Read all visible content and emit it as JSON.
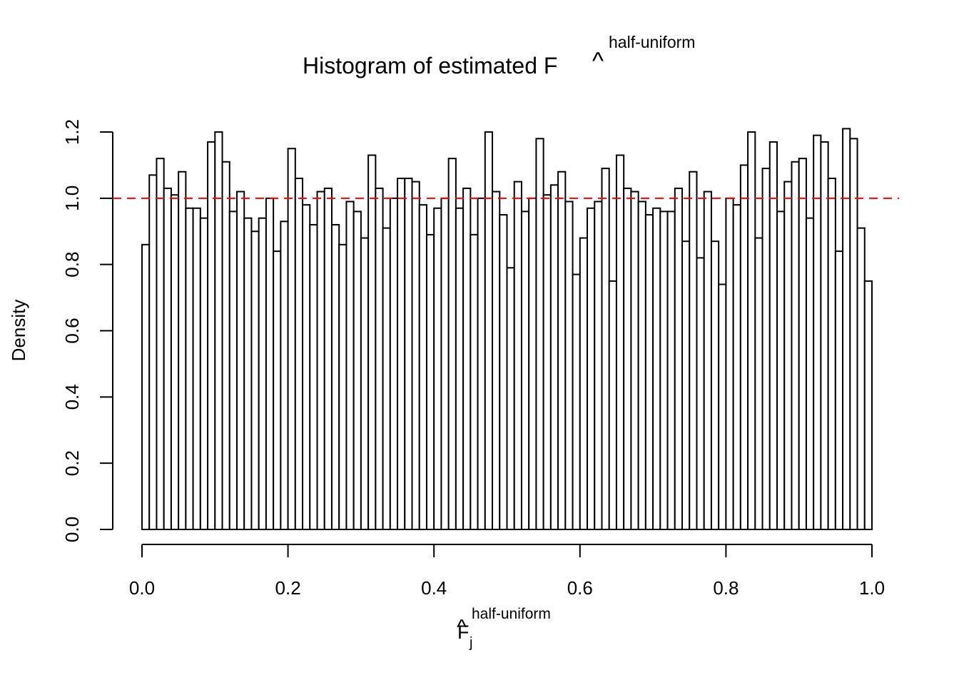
{
  "chart_data": {
    "type": "bar",
    "title": "Histogram of estimated F",
    "title_accent": "^",
    "title_superscript": "half-uniform",
    "xlabel": "F",
    "xlabel_accent": "^",
    "xlabel_subscript": "j",
    "xlabel_superscript": "half-uniform",
    "ylabel": "Density",
    "xlim": [
      0,
      1
    ],
    "ylim": [
      0,
      1.2
    ],
    "x_ticks": [
      "0.0",
      "0.2",
      "0.4",
      "0.6",
      "0.8",
      "1.0"
    ],
    "y_ticks": [
      "0.0",
      "0.2",
      "0.4",
      "0.6",
      "0.8",
      "1.0",
      "1.2"
    ],
    "bin_width": 0.01,
    "bin_start": 0,
    "values": [
      0.86,
      1.07,
      1.12,
      1.03,
      1.01,
      1.08,
      0.97,
      0.97,
      0.94,
      1.17,
      1.2,
      1.11,
      0.96,
      1.02,
      0.94,
      0.9,
      0.94,
      1.0,
      0.84,
      0.93,
      1.15,
      1.06,
      0.98,
      0.92,
      1.02,
      1.03,
      0.92,
      0.86,
      0.99,
      0.96,
      0.88,
      1.13,
      1.03,
      0.91,
      1.0,
      1.06,
      1.06,
      1.05,
      0.98,
      0.89,
      0.97,
      1.0,
      1.12,
      0.97,
      1.03,
      0.89,
      1.0,
      1.2,
      1.02,
      0.95,
      0.79,
      1.05,
      0.96,
      1.0,
      1.18,
      1.01,
      1.04,
      1.08,
      0.99,
      0.77,
      0.88,
      0.97,
      0.99,
      1.09,
      0.75,
      1.13,
      1.03,
      1.02,
      0.99,
      0.95,
      0.97,
      0.96,
      0.96,
      1.03,
      0.87,
      1.08,
      0.82,
      1.02,
      0.87,
      0.74,
      1.0,
      0.98,
      1.1,
      1.2,
      0.88,
      1.09,
      1.17,
      0.96,
      1.05,
      1.11,
      1.12,
      0.94,
      1.19,
      1.17,
      1.06,
      0.84,
      1.21,
      1.18,
      0.91,
      0.75
    ],
    "reference_line": {
      "y": 1.0,
      "color": "#ff0000",
      "style": "dashed"
    },
    "bar_fill": "#ffffff",
    "bar_stroke": "#000000",
    "grid": false,
    "legend": "none"
  }
}
